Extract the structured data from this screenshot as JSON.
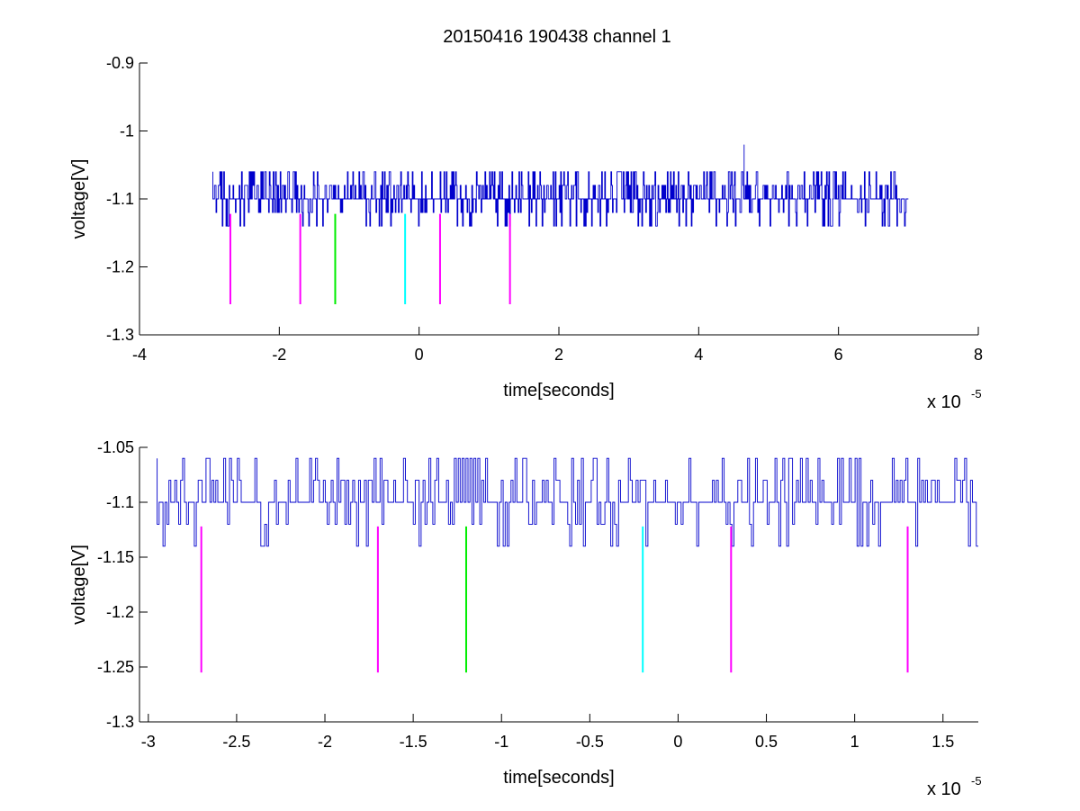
{
  "title": "20150416 190438 channel 1",
  "colors": {
    "signal": "#0000cc",
    "magenta": "#ff00ff",
    "green": "#00ee00",
    "cyan": "#00ffff",
    "axis": "#000000"
  },
  "chart_data": [
    {
      "type": "line",
      "xlabel": "time[seconds]",
      "ylabel": "voltage[V]",
      "x_scale_note": {
        "prefix": "x 10",
        "exponent": "-5"
      },
      "xlim": [
        -4,
        8
      ],
      "ylim": [
        -1.3,
        -0.9
      ],
      "xticks": [
        -4,
        -2,
        0,
        2,
        4,
        6,
        8
      ],
      "xtick_labels": [
        "-4",
        "-2",
        "0",
        "2",
        "4",
        "6",
        "8"
      ],
      "yticks": [
        -1.3,
        -1.2,
        -1.1,
        -1,
        -0.9
      ],
      "ytick_labels": [
        "-1.3",
        "-1.2",
        "-1.1",
        "-1",
        "-0.9"
      ],
      "grid": false,
      "series": [
        {
          "color": "#0000cc",
          "x_range": [
            -2.95,
            7.0
          ],
          "levels": [
            -1.06,
            -1.08,
            -1.1,
            -1.12,
            -1.14
          ],
          "baseline": -1.1,
          "spike": {
            "x": 4.65,
            "y": -1.02
          }
        }
      ],
      "markers": [
        {
          "x": -2.7,
          "y_top": -1.122,
          "y_bottom": -1.255,
          "color": "magenta"
        },
        {
          "x": -1.7,
          "y_top": -1.122,
          "y_bottom": -1.255,
          "color": "magenta"
        },
        {
          "x": -1.2,
          "y_top": -1.122,
          "y_bottom": -1.255,
          "color": "green"
        },
        {
          "x": -0.2,
          "y_top": -1.122,
          "y_bottom": -1.255,
          "color": "cyan"
        },
        {
          "x": 0.3,
          "y_top": -1.122,
          "y_bottom": -1.255,
          "color": "magenta"
        },
        {
          "x": 1.3,
          "y_top": -1.122,
          "y_bottom": -1.255,
          "color": "magenta"
        }
      ]
    },
    {
      "type": "line",
      "xlabel": "time[seconds]",
      "ylabel": "voltage[V]",
      "x_scale_note": {
        "prefix": "x 10",
        "exponent": "-5"
      },
      "xlim": [
        -3.05,
        1.7
      ],
      "ylim": [
        -1.3,
        -1.05
      ],
      "xticks": [
        -3,
        -2.5,
        -2,
        -1.5,
        -1,
        -0.5,
        0,
        0.5,
        1,
        1.5
      ],
      "xtick_labels": [
        "-3",
        "-2.5",
        "-2",
        "-1.5",
        "-1",
        "-0.5",
        "0",
        "0.5",
        "1",
        "1.5"
      ],
      "yticks": [
        -1.3,
        -1.25,
        -1.2,
        -1.15,
        -1.1,
        -1.05
      ],
      "ytick_labels": [
        "-1.3",
        "-1.25",
        "-1.2",
        "-1.15",
        "-1.1",
        "-1.05"
      ],
      "grid": false,
      "series": [
        {
          "color": "#0000cc",
          "x_range": [
            -2.95,
            1.7
          ],
          "levels": [
            -1.06,
            -1.08,
            -1.1,
            -1.12,
            -1.14
          ],
          "baseline": -1.1
        }
      ],
      "markers": [
        {
          "x": -2.7,
          "y_top": -1.122,
          "y_bottom": -1.255,
          "color": "magenta"
        },
        {
          "x": -1.7,
          "y_top": -1.122,
          "y_bottom": -1.255,
          "color": "magenta"
        },
        {
          "x": -1.2,
          "y_top": -1.122,
          "y_bottom": -1.255,
          "color": "green"
        },
        {
          "x": -0.2,
          "y_top": -1.122,
          "y_bottom": -1.255,
          "color": "cyan"
        },
        {
          "x": 0.3,
          "y_top": -1.122,
          "y_bottom": -1.255,
          "color": "magenta"
        },
        {
          "x": 1.3,
          "y_top": -1.122,
          "y_bottom": -1.255,
          "color": "magenta"
        }
      ]
    }
  ]
}
